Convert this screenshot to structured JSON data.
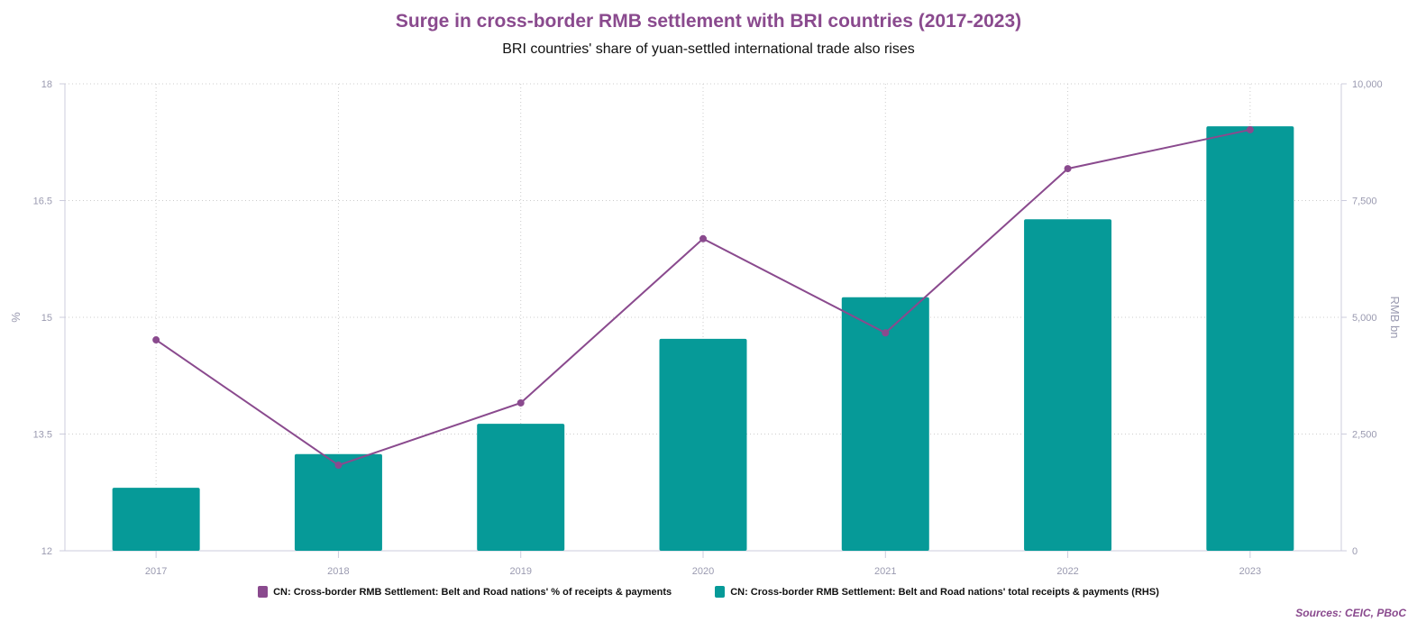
{
  "chart_data": {
    "type": "bar+line",
    "title": "Surge in cross-border RMB settlement with BRI countries (2017-2023)",
    "subtitle": "BRI countries' share of yuan-settled international trade also rises",
    "categories": [
      "2017",
      "2018",
      "2019",
      "2020",
      "2021",
      "2022",
      "2023"
    ],
    "series": [
      {
        "name": "CN: Cross-border RMB Settlement: Belt and Road nations' % of receipts & payments",
        "type": "line",
        "axis": "left",
        "color": "#8a4a8e",
        "values": [
          14.71,
          13.1,
          13.9,
          16.01,
          14.8,
          16.91,
          17.41
        ]
      },
      {
        "name": "CN: Cross-border RMB Settlement: Belt and Road nations' total receipts & payments (RHS)",
        "type": "bar",
        "axis": "right",
        "color": "#069a98",
        "values": [
          1350,
          2070,
          2720,
          4540,
          5430,
          7100,
          9090
        ]
      }
    ],
    "ylabel": "%",
    "ylim": [
      12,
      18
    ],
    "yticks": [
      "12",
      "13.5",
      "15",
      "16.5",
      "18"
    ],
    "y2label": "RMB bn",
    "y2lim": [
      0,
      10000
    ],
    "y2ticks": [
      "0",
      "2,500",
      "5,000",
      "7,500",
      "10,000"
    ],
    "grid": true,
    "legend": "bottom",
    "source": "Sources: CEIC, PBoC"
  }
}
